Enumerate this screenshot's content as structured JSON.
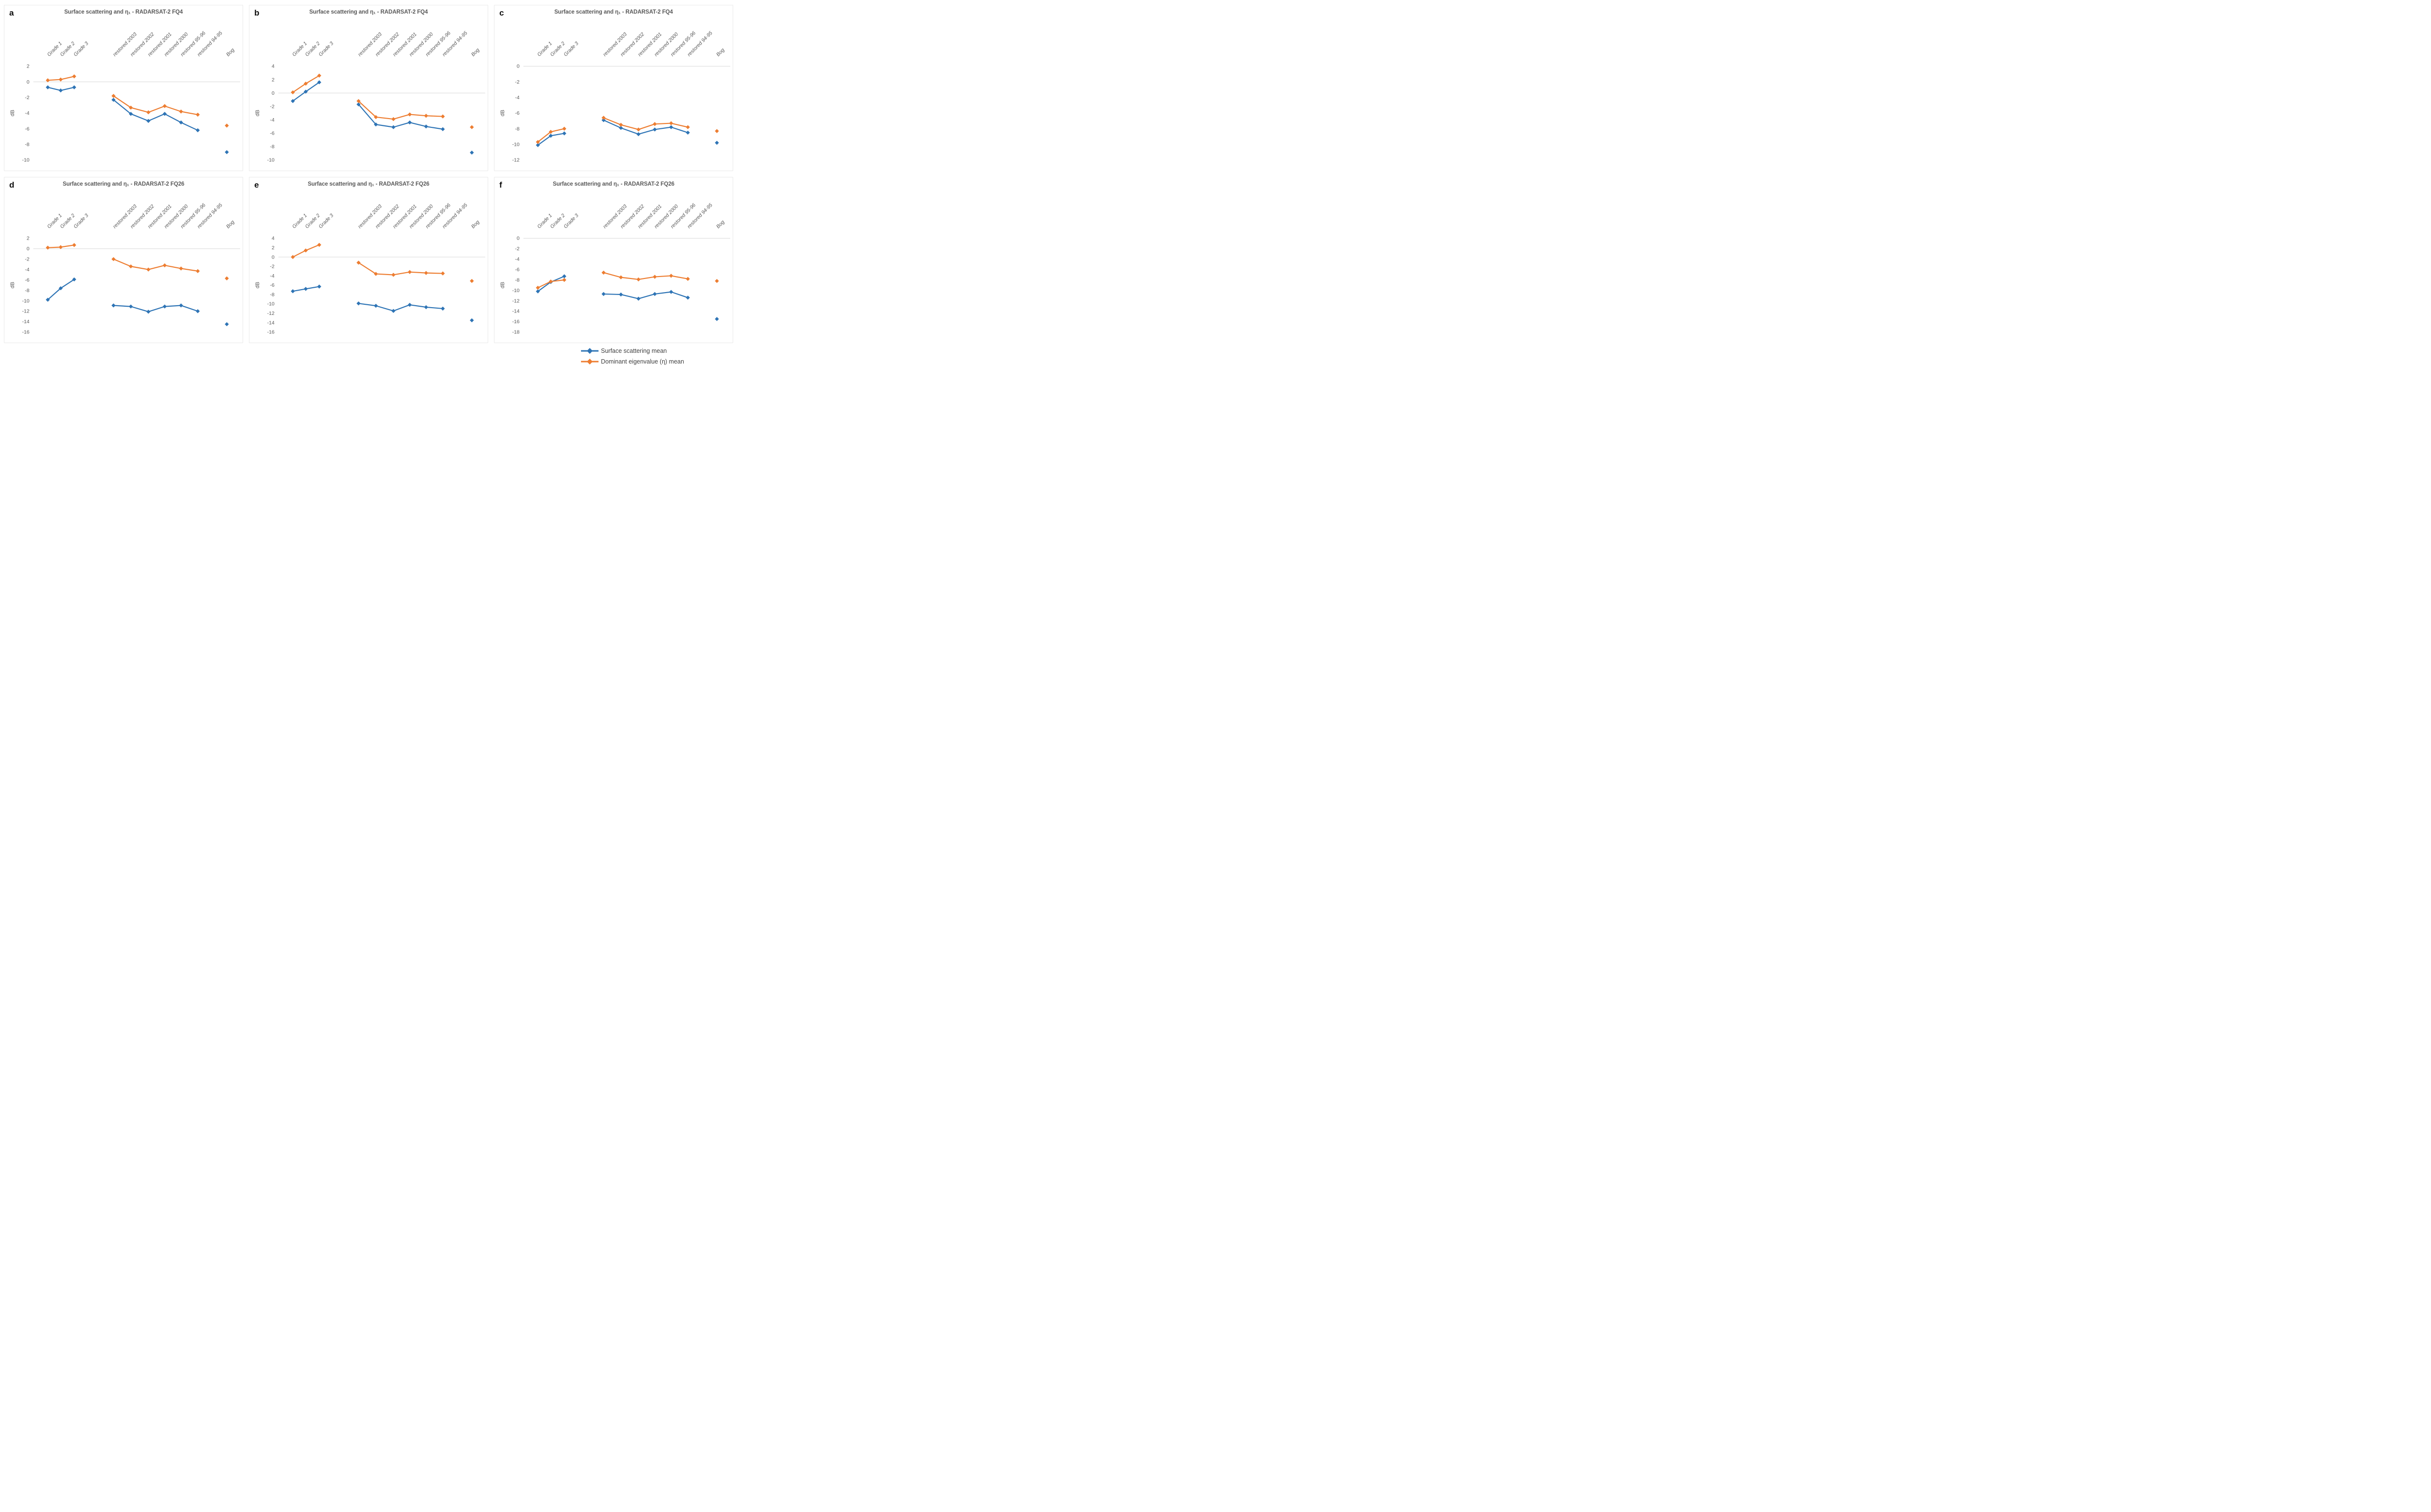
{
  "colors": {
    "surface": "#2E74B5",
    "eigenvalue": "#ED7D31",
    "grid": "#D9D9D9",
    "tick_text": "#595959",
    "title_text": "#595959",
    "panel_letter": "#0D0D0D",
    "panel_border": "#E9E9E9",
    "background": "#FFFFFF"
  },
  "legend": {
    "items": [
      {
        "label": "Surface scattering mean",
        "series": "surface",
        "color": "#2E74B5"
      },
      {
        "label": "Dominant eigenvalue (η) mean",
        "series": "eigenvalue",
        "color": "#ED7D31"
      }
    ]
  },
  "chart_data": [
    {
      "type": "line",
      "panel": "a",
      "title": "Surface scattering and η₁ - RADARSAT-2 FQ4",
      "ylabel": "dB",
      "yticks": [
        2,
        0,
        -2,
        -4,
        -6,
        -8,
        -10
      ],
      "grid": "zero-line-only",
      "legend_position": "figure-bottom-right",
      "categories": [
        "Grade 1",
        "Grade 2",
        "Grade 3",
        "restored 2003",
        "restored 2002",
        "restored 2001",
        "restored 2000",
        "restored 95-96",
        "restored 94-95",
        "Bog"
      ],
      "connected_groups": [
        [
          0,
          1,
          2
        ],
        [
          3,
          4,
          5,
          6,
          7,
          8
        ],
        [
          9
        ]
      ],
      "series": [
        {
          "name": "Surface scattering mean",
          "color_key": "surface",
          "values": [
            -0.7,
            -1.1,
            -0.7,
            -2.3,
            -4.1,
            -5.0,
            -4.1,
            -5.2,
            -6.2,
            -9.0
          ]
        },
        {
          "name": "Dominant eigenvalue (η) mean",
          "color_key": "eigenvalue",
          "values": [
            0.2,
            0.3,
            0.7,
            -1.8,
            -3.3,
            -3.9,
            -3.1,
            -3.8,
            -4.2,
            -5.6
          ]
        }
      ]
    },
    {
      "type": "line",
      "panel": "b",
      "title": "Surface scattering and η₁ - RADARSAT-2 FQ4",
      "ylabel": "dB",
      "yticks": [
        4,
        2,
        0,
        -2,
        -4,
        -6,
        -8,
        -10
      ],
      "grid": "zero-line-only",
      "categories": [
        "Grade 1",
        "Grade 2",
        "Grade 3",
        "restored 2003",
        "restored 2002",
        "restored 2001",
        "restored 2000",
        "restored 95-96",
        "restored 94-95",
        "Bog"
      ],
      "connected_groups": [
        [
          0,
          1,
          2
        ],
        [
          3,
          4,
          5,
          6,
          7,
          8
        ],
        [
          9
        ]
      ],
      "series": [
        {
          "name": "Surface scattering mean",
          "color_key": "surface",
          "values": [
            -1.2,
            0.2,
            1.6,
            -1.7,
            -4.7,
            -5.1,
            -4.4,
            -5.0,
            -5.4,
            -8.9
          ]
        },
        {
          "name": "Dominant eigenvalue (η) mean",
          "color_key": "eigenvalue",
          "values": [
            0.1,
            1.4,
            2.6,
            -1.2,
            -3.6,
            -3.9,
            -3.2,
            -3.4,
            -3.5,
            -5.1
          ]
        }
      ]
    },
    {
      "type": "line",
      "panel": "c",
      "title": "Surface scattering and η₁ - RADARSAT-2 FQ4",
      "ylabel": "dB",
      "yticks": [
        0,
        -2,
        -4,
        -6,
        -8,
        -10,
        -12
      ],
      "grid": "zero-line-only",
      "categories": [
        "Grade 1",
        "Grade 2",
        "Grade 3",
        "restored 2003",
        "restored 2002",
        "restored 2001",
        "restored 2000",
        "restored 95-96",
        "restored 94-95",
        "Bog"
      ],
      "connected_groups": [
        [
          0,
          1,
          2
        ],
        [
          3,
          4,
          5,
          6,
          7,
          8
        ],
        [
          9
        ]
      ],
      "series": [
        {
          "name": "Surface scattering mean",
          "color_key": "surface",
          "values": [
            -10.1,
            -8.9,
            -8.6,
            -6.9,
            -7.9,
            -8.7,
            -8.1,
            -7.8,
            -8.5,
            -9.8
          ]
        },
        {
          "name": "Dominant eigenvalue (η) mean",
          "color_key": "eigenvalue",
          "values": [
            -9.7,
            -8.4,
            -8.0,
            -6.6,
            -7.5,
            -8.1,
            -7.4,
            -7.3,
            -7.8,
            -8.3
          ]
        }
      ]
    },
    {
      "type": "line",
      "panel": "d",
      "title": "Surface scattering and η₁ - RADARSAT-2 FQ26",
      "ylabel": "dB",
      "yticks": [
        2,
        0,
        -2,
        -4,
        -6,
        -8,
        -10,
        -12,
        -14,
        -16
      ],
      "grid": "zero-line-only",
      "categories": [
        "Grade 1",
        "Grade 2",
        "Grade 3",
        "restored 2003",
        "restored 2002",
        "restored 2001",
        "restored 2000",
        "restored 95-96",
        "restored 94-95",
        "Bog"
      ],
      "connected_groups": [
        [
          0,
          1,
          2
        ],
        [
          3,
          4,
          5,
          6,
          7,
          8
        ],
        [
          9
        ]
      ],
      "series": [
        {
          "name": "Surface scattering mean",
          "color_key": "surface",
          "values": [
            -9.8,
            -7.6,
            -5.9,
            -10.9,
            -11.1,
            -12.1,
            -11.1,
            -10.9,
            -12.0,
            -14.5
          ]
        },
        {
          "name": "Dominant eigenvalue (η) mean",
          "color_key": "eigenvalue",
          "values": [
            0.2,
            0.3,
            0.7,
            -2.0,
            -3.4,
            -4.0,
            -3.2,
            -3.8,
            -4.3,
            -5.7
          ]
        }
      ]
    },
    {
      "type": "line",
      "panel": "e",
      "title": "Surface scattering and η₁ - RADARSAT-2 FQ26",
      "ylabel": "dB",
      "yticks": [
        4,
        2,
        0,
        -2,
        -4,
        -6,
        -8,
        -10,
        -12,
        -14,
        -16
      ],
      "grid": "zero-line-only",
      "categories": [
        "Grade 1",
        "Grade 2",
        "Grade 3",
        "restored 2003",
        "restored 2002",
        "restored 2001",
        "restored 2000",
        "restored 95-96",
        "restored 94-95",
        "Bog"
      ],
      "connected_groups": [
        [
          0,
          1,
          2
        ],
        [
          3,
          4,
          5,
          6,
          7,
          8
        ],
        [
          9
        ]
      ],
      "series": [
        {
          "name": "Surface scattering mean",
          "color_key": "surface",
          "values": [
            -7.3,
            -6.8,
            -6.3,
            -9.9,
            -10.4,
            -11.5,
            -10.2,
            -10.7,
            -11.0,
            -13.5
          ]
        },
        {
          "name": "Dominant eigenvalue (η) mean",
          "color_key": "eigenvalue",
          "values": [
            0.0,
            1.4,
            2.6,
            -1.2,
            -3.6,
            -3.8,
            -3.2,
            -3.4,
            -3.5,
            -5.1
          ]
        }
      ]
    },
    {
      "type": "line",
      "panel": "f",
      "title": "Surface scattering and η₁ - RADARSAT-2 FQ26",
      "ylabel": "dB",
      "yticks": [
        0,
        -2,
        -4,
        -6,
        -8,
        -10,
        -12,
        -14,
        -16,
        -18
      ],
      "grid": "zero-line-only",
      "categories": [
        "Grade 1",
        "Grade 2",
        "Grade 3",
        "restored 2003",
        "restored 2002",
        "restored 2001",
        "restored 2000",
        "restored 95-96",
        "restored 94-95",
        "Bog"
      ],
      "connected_groups": [
        [
          0,
          1,
          2
        ],
        [
          3,
          4,
          5,
          6,
          7,
          8
        ],
        [
          9
        ]
      ],
      "series": [
        {
          "name": "Surface scattering mean",
          "color_key": "surface",
          "values": [
            -10.2,
            -8.4,
            -7.3,
            -10.7,
            -10.8,
            -11.6,
            -10.7,
            -10.3,
            -11.4,
            -15.5
          ]
        },
        {
          "name": "Dominant eigenvalue (η) mean",
          "color_key": "eigenvalue",
          "values": [
            -9.5,
            -8.3,
            -8.0,
            -6.6,
            -7.5,
            -7.9,
            -7.4,
            -7.2,
            -7.8,
            -8.2
          ]
        }
      ]
    }
  ]
}
